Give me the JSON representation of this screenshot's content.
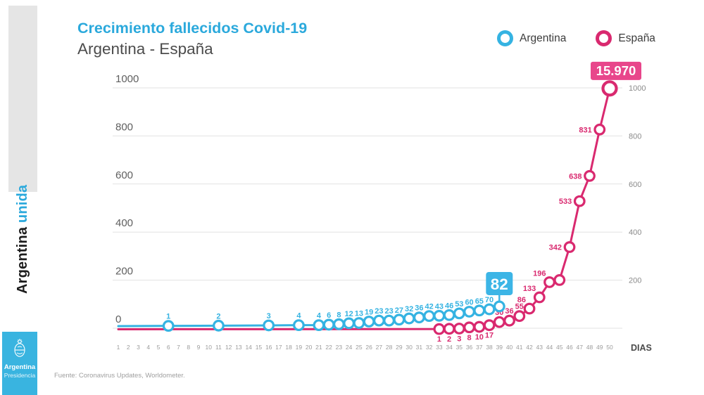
{
  "colors": {
    "argentina": "#35b3e2",
    "espana": "#d9296f",
    "argentina_badge_bg": "#3cb5e6",
    "espana_badge_bg": "#e8468b",
    "title_accent": "#2ba9dc",
    "logo_bg": "#39b4e0",
    "grid": "#e2e2e2",
    "axis_text": "#5f5f5f",
    "axis_text_right": "#8a8a8a",
    "axis_text_x": "#9c9c9c"
  },
  "sidebar": {
    "brand_primary": "Argentina ",
    "brand_accent": "unida",
    "logo_title": "Argentina",
    "logo_subtitle": "Presidencia"
  },
  "header": {
    "title": "Crecimiento fallecidos Covid-19",
    "subtitle": "Argentina - España"
  },
  "legend": {
    "items": [
      {
        "label": "Argentina",
        "color": "#35b3e2"
      },
      {
        "label": "España",
        "color": "#d9296f"
      }
    ]
  },
  "footer": {
    "source": "Fuente: Coronavirus Updates, Worldometer."
  },
  "chart_data": {
    "type": "line",
    "xlabel": "DIAS",
    "ylabel": "",
    "ylim": [
      0,
      1000
    ],
    "xlim": [
      1,
      50
    ],
    "grid": true,
    "x_axis": {
      "label": "DIAS",
      "ticks": [
        1,
        2,
        3,
        4,
        5,
        6,
        7,
        8,
        9,
        10,
        11,
        12,
        13,
        14,
        15,
        16,
        17,
        18,
        19,
        20,
        21,
        22,
        23,
        24,
        25,
        26,
        27,
        28,
        29,
        30,
        31,
        32,
        33,
        34,
        35,
        36,
        37,
        38,
        39,
        40,
        41,
        42,
        43,
        44,
        45,
        46,
        47,
        48,
        49,
        50
      ]
    },
    "y_axis": {
      "left_ticks": [
        0,
        200,
        400,
        600,
        800,
        1000
      ],
      "right_ticks": [
        200,
        400,
        600,
        800,
        1000
      ]
    },
    "series": [
      {
        "name": "España",
        "color": "#d9296f",
        "badge": {
          "text": "15.970",
          "style": "float",
          "bg": "#e8468b"
        },
        "points": [
          {
            "day": 33,
            "value": 1,
            "label": "1",
            "pos": "below"
          },
          {
            "day": 34,
            "value": 2,
            "label": "2",
            "pos": "below"
          },
          {
            "day": 35,
            "value": 3,
            "label": "3",
            "pos": "below"
          },
          {
            "day": 36,
            "value": 8,
            "label": "8",
            "pos": "below"
          },
          {
            "day": 37,
            "value": 10,
            "label": "10",
            "pos": "below"
          },
          {
            "day": 38,
            "value": 17,
            "label": "17",
            "pos": "below"
          },
          {
            "day": 39,
            "value": 30,
            "label": "30",
            "pos": "above"
          },
          {
            "day": 40,
            "value": 36,
            "label": "36",
            "pos": "above"
          },
          {
            "day": 41,
            "value": 55,
            "label": "55",
            "pos": "above"
          },
          {
            "day": 42,
            "value": 86,
            "label": "86",
            "pos": "upleft"
          },
          {
            "day": 43,
            "value": 133,
            "label": "133",
            "pos": "upleft"
          },
          {
            "day": 44,
            "value": 196,
            "label": "196",
            "pos": "upleft"
          },
          {
            "day": 45,
            "value": 205,
            "label": "",
            "pos": "none"
          },
          {
            "day": 46,
            "value": 342,
            "label": "342",
            "pos": "left"
          },
          {
            "day": 47,
            "value": 533,
            "label": "533",
            "pos": "left"
          },
          {
            "day": 48,
            "value": 638,
            "label": "638",
            "pos": "left"
          },
          {
            "day": 49,
            "value": 831,
            "label": "831",
            "pos": "left"
          },
          {
            "day": 50,
            "value": 1002,
            "label": "",
            "pos": "none",
            "big": true
          }
        ]
      },
      {
        "name": "Argentina",
        "color": "#35b3e2",
        "badge": {
          "text": "82",
          "style": "stem",
          "bg": "#3cb5e6"
        },
        "points": [
          {
            "day": 6,
            "value": 1,
            "label": "1",
            "pos": "above"
          },
          {
            "day": 11,
            "value": 2,
            "label": "2",
            "pos": "above"
          },
          {
            "day": 16,
            "value": 3,
            "label": "3",
            "pos": "above"
          },
          {
            "day": 19,
            "value": 4,
            "label": "4",
            "pos": "above"
          },
          {
            "day": 21,
            "value": 4,
            "label": "4",
            "pos": "above"
          },
          {
            "day": 22,
            "value": 6,
            "label": "6",
            "pos": "above"
          },
          {
            "day": 23,
            "value": 8,
            "label": "8",
            "pos": "above"
          },
          {
            "day": 24,
            "value": 12,
            "label": "12",
            "pos": "above"
          },
          {
            "day": 25,
            "value": 13,
            "label": "13",
            "pos": "above"
          },
          {
            "day": 26,
            "value": 19,
            "label": "19",
            "pos": "above"
          },
          {
            "day": 27,
            "value": 23,
            "label": "23",
            "pos": "above"
          },
          {
            "day": 28,
            "value": 23,
            "label": "23",
            "pos": "above"
          },
          {
            "day": 29,
            "value": 27,
            "label": "27",
            "pos": "above"
          },
          {
            "day": 30,
            "value": 32,
            "label": "32",
            "pos": "above"
          },
          {
            "day": 31,
            "value": 36,
            "label": "36",
            "pos": "above"
          },
          {
            "day": 32,
            "value": 42,
            "label": "42",
            "pos": "above"
          },
          {
            "day": 33,
            "value": 43,
            "label": "43",
            "pos": "above"
          },
          {
            "day": 34,
            "value": 46,
            "label": "46",
            "pos": "above"
          },
          {
            "day": 35,
            "value": 53,
            "label": "53",
            "pos": "above"
          },
          {
            "day": 36,
            "value": 60,
            "label": "60",
            "pos": "above"
          },
          {
            "day": 37,
            "value": 65,
            "label": "65",
            "pos": "above"
          },
          {
            "day": 38,
            "value": 70,
            "label": "70",
            "pos": "above"
          },
          {
            "day": 39,
            "value": 82,
            "label": "",
            "pos": "none"
          }
        ]
      }
    ]
  }
}
